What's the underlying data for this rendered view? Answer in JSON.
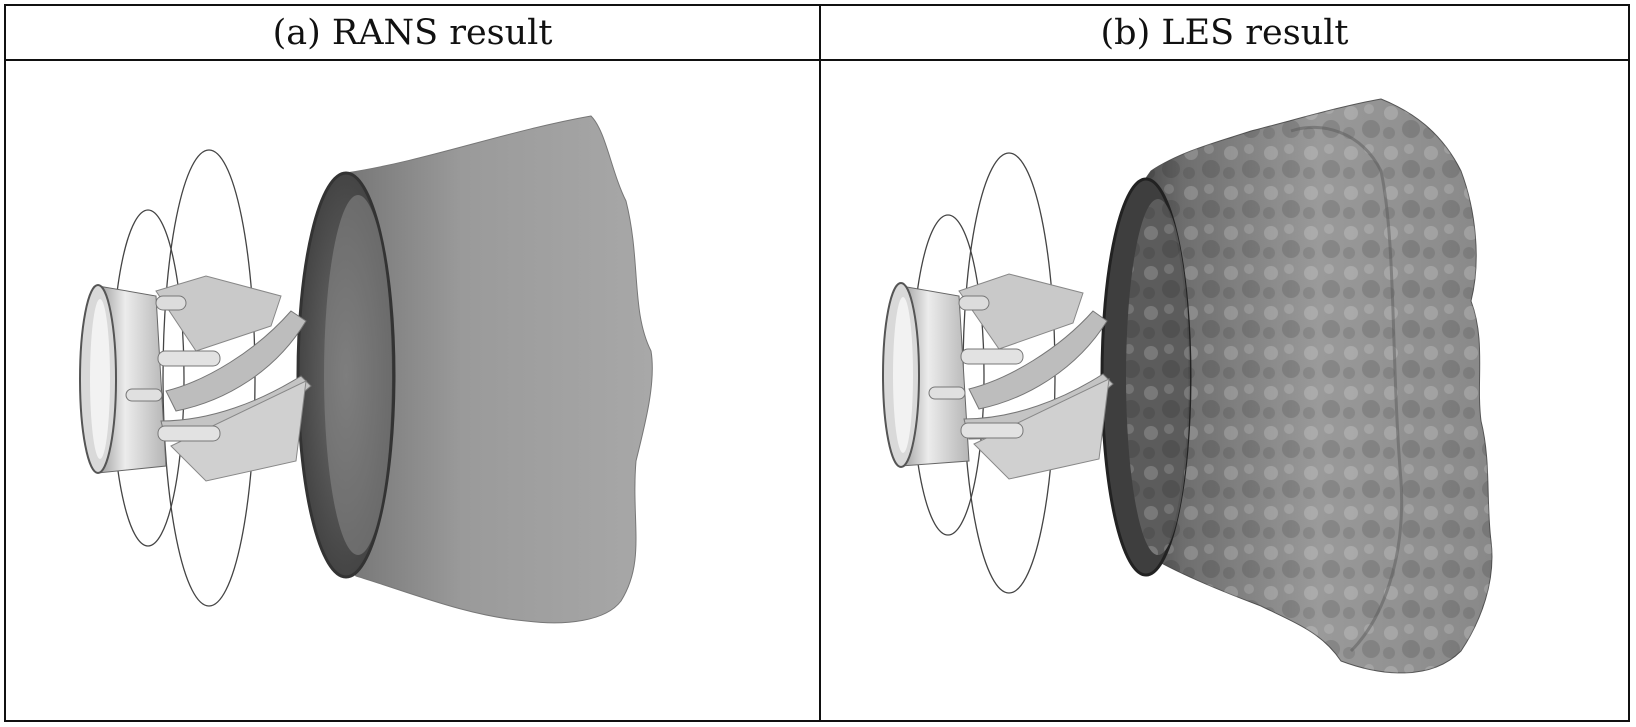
{
  "figure": {
    "panels": [
      {
        "id": "a",
        "caption": "(a) RANS result",
        "content": "rans-flame-isosurface"
      },
      {
        "id": "b",
        "caption": "(b) LES result",
        "content": "les-flame-isosurface"
      }
    ]
  },
  "colors": {
    "border": "#111111",
    "background": "#ffffff"
  }
}
